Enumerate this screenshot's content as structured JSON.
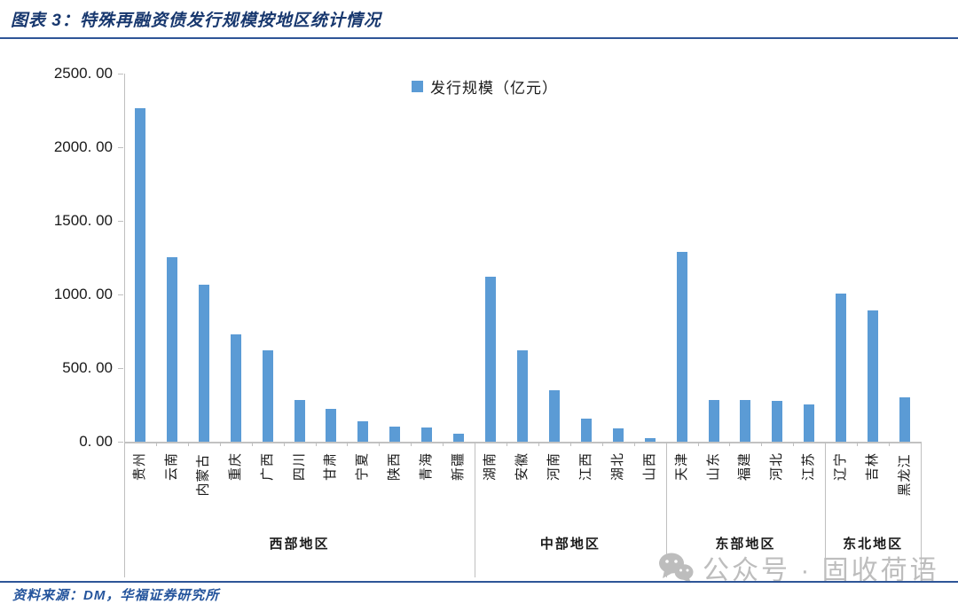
{
  "title": "图表 3：特殊再融资债发行规模按地区统计情况",
  "legend": {
    "label": "发行规模（亿元）",
    "marker_color": "#5b9bd5"
  },
  "source_note": "资料来源：DM，华福证券研究所",
  "watermark": {
    "icon": "wechat-icon",
    "text": "公众号 · 固收荷语"
  },
  "colors": {
    "bar": "#5b9bd5",
    "title_navy": "#17376e",
    "rule_blue": "#2e5597",
    "axis_gray": "#bfbfbf",
    "watermark_gray": "#bdbdbd"
  },
  "chart_data": {
    "type": "bar",
    "title": "特殊再融资债发行规模按地区统计情况",
    "legend_entries": [
      "发行规模（亿元）"
    ],
    "legend_position": "top",
    "grid": false,
    "ylabel": "",
    "xlabel": "",
    "ylim": [
      0,
      2500
    ],
    "ytick_step": 500,
    "ytick_labels": [
      "2500. 00",
      "2000. 00",
      "1500. 00",
      "1000. 00",
      "500. 00",
      "0. 00"
    ],
    "groups": [
      {
        "label": "西部地区",
        "categories": [
          "贵州",
          "云南",
          "内蒙古",
          "重庆",
          "广西",
          "四川",
          "甘肃",
          "宁夏",
          "陕西",
          "青海",
          "新疆"
        ],
        "values": [
          2263.8,
          1256.0,
          1067.0,
          726.1,
          623.3,
          282.0,
          220.1,
          140.0,
          100.0,
          96.0,
          55.0
        ]
      },
      {
        "label": "中部地区",
        "categories": [
          "湖南",
          "安徽",
          "河南",
          "江西",
          "湖北",
          "山西"
        ],
        "values": [
          1121.8,
          620.5,
          347.3,
          156.0,
          92.6,
          25.0
        ]
      },
      {
        "label": "东部地区",
        "categories": [
          "天津",
          "山东",
          "福建",
          "河北",
          "江苏"
        ],
        "values": [
          1286.3,
          282.7,
          285.0,
          280.0,
          256.0
        ]
      },
      {
        "label": "东北地区",
        "categories": [
          "辽宁",
          "吉林",
          "黑龙江"
        ],
        "values": [
          1006.0,
          892.4,
          303.7
        ]
      }
    ]
  }
}
